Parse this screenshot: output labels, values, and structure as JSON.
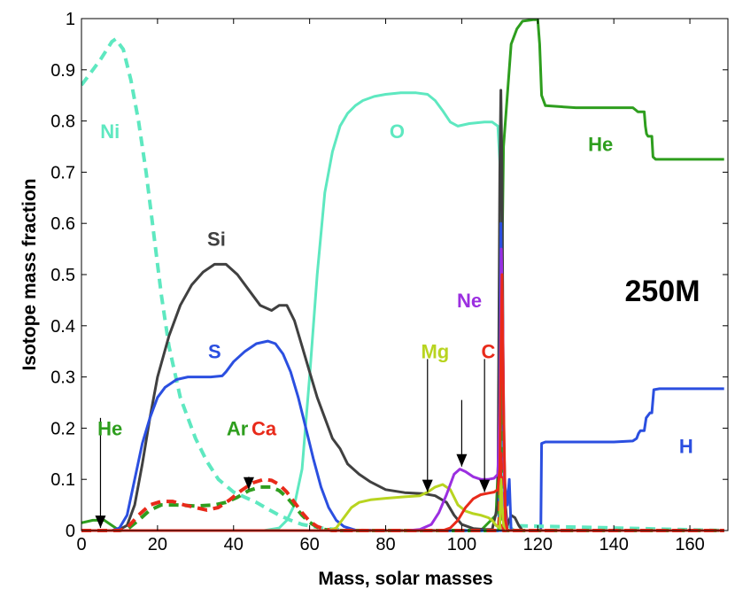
{
  "chart_data": {
    "type": "line",
    "title": "",
    "xlabel": "Mass, solar masses",
    "ylabel": "Isotope mass fraction",
    "xlim": [
      0,
      170
    ],
    "ylim": [
      0,
      1
    ],
    "xticks": [
      0,
      20,
      40,
      60,
      80,
      100,
      120,
      140,
      160
    ],
    "yticks": [
      0,
      0.1,
      0.2,
      0.3,
      0.4,
      0.5,
      0.6,
      0.7,
      0.8,
      0.9,
      1
    ],
    "xtick_labels": [
      "0",
      "20",
      "40",
      "60",
      "80",
      "100",
      "120",
      "140",
      "160"
    ],
    "ytick_labels": [
      "0",
      "0.1",
      "0.2",
      "0.3",
      "0.4",
      "0.5",
      "0.6",
      "0.7",
      "0.8",
      "0.9",
      "1"
    ],
    "grid": false,
    "annotation_text": "250M",
    "series": [
      {
        "name": "He",
        "color": "#2e9e1e",
        "dash": false,
        "x": [
          0,
          3,
          6,
          8,
          10,
          105,
          109,
          110,
          111,
          113,
          114.5,
          115,
          116,
          119,
          120,
          120.5,
          121,
          122,
          130,
          145,
          146,
          146.3,
          147,
          148,
          148.3,
          148.6,
          149,
          150,
          150.3,
          151,
          169
        ],
        "y": [
          0.015,
          0.02,
          0.02,
          0.01,
          0,
          0,
          0.03,
          0.2,
          0.75,
          0.95,
          0.98,
          0.985,
          0.995,
          0.998,
          0.998,
          0.95,
          0.85,
          0.83,
          0.826,
          0.826,
          0.82,
          0.818,
          0.818,
          0.818,
          0.79,
          0.775,
          0.77,
          0.77,
          0.73,
          0.725,
          0.725
        ]
      },
      {
        "name": "H",
        "color": "#2b4fe0",
        "dash": false,
        "x": [
          0,
          120,
          120.8,
          121,
          122,
          140,
          145,
          146,
          146.5,
          147,
          148,
          148.5,
          149.5,
          150,
          150.5,
          152,
          169
        ],
        "y": [
          0,
          0,
          0,
          0.17,
          0.173,
          0.173,
          0.175,
          0.18,
          0.19,
          0.195,
          0.195,
          0.22,
          0.23,
          0.23,
          0.275,
          0.277,
          0.277
        ]
      },
      {
        "name": "Ni",
        "color": "#5ee8c0",
        "dash": true,
        "x": [
          0,
          2,
          5,
          8,
          9,
          11,
          13,
          15,
          17,
          19,
          21,
          23,
          26,
          30,
          33,
          36,
          40,
          43,
          46,
          49,
          52,
          55,
          58,
          61,
          64,
          67,
          70,
          75,
          100,
          110,
          111,
          169
        ],
        "y": [
          0.87,
          0.89,
          0.92,
          0.955,
          0.96,
          0.94,
          0.88,
          0.8,
          0.7,
          0.58,
          0.46,
          0.36,
          0.26,
          0.18,
          0.135,
          0.1,
          0.075,
          0.065,
          0.055,
          0.042,
          0.03,
          0.02,
          0.012,
          0.008,
          0.004,
          0.002,
          0.001,
          0,
          0,
          0,
          0.01,
          0
        ]
      },
      {
        "name": "O",
        "color": "#5ee8c0",
        "dash": false,
        "x": [
          0,
          48,
          52,
          54,
          56,
          58,
          60,
          62,
          64,
          66,
          68,
          70,
          72,
          74,
          77,
          80,
          84,
          88,
          91,
          93,
          95,
          97,
          99,
          102,
          106,
          108,
          109.5,
          110,
          110.5,
          111,
          112,
          114,
          169
        ],
        "y": [
          0,
          0,
          0.005,
          0.02,
          0.05,
          0.12,
          0.3,
          0.5,
          0.66,
          0.74,
          0.79,
          0.815,
          0.83,
          0.84,
          0.848,
          0.852,
          0.855,
          0.855,
          0.852,
          0.84,
          0.82,
          0.798,
          0.79,
          0.795,
          0.798,
          0.798,
          0.79,
          0.72,
          0.3,
          0.05,
          0.01,
          0,
          0
        ]
      },
      {
        "name": "Si",
        "color": "#404040",
        "dash": false,
        "x": [
          0,
          8,
          10,
          12,
          14,
          16,
          18,
          20,
          23,
          26,
          29,
          32,
          35,
          38,
          41,
          44,
          47,
          50,
          52,
          54,
          56,
          58,
          60,
          62,
          64,
          65,
          66,
          68,
          70,
          73,
          76,
          80,
          85,
          90,
          93,
          96,
          98,
          100,
          103,
          106,
          108,
          109.5,
          110,
          110.3,
          110.6,
          111,
          111.5,
          112,
          113,
          114,
          115,
          116,
          169
        ],
        "y": [
          0,
          0,
          0.002,
          0.01,
          0.05,
          0.13,
          0.22,
          0.3,
          0.38,
          0.44,
          0.48,
          0.505,
          0.52,
          0.52,
          0.5,
          0.47,
          0.44,
          0.43,
          0.44,
          0.44,
          0.41,
          0.36,
          0.31,
          0.26,
          0.22,
          0.2,
          0.18,
          0.16,
          0.13,
          0.11,
          0.095,
          0.08,
          0.074,
          0.072,
          0.068,
          0.055,
          0.03,
          0.012,
          0.004,
          0.002,
          0.002,
          0.05,
          0.7,
          0.86,
          0.7,
          0.2,
          0.05,
          0.01,
          0.03,
          0.025,
          0.01,
          0,
          0
        ]
      },
      {
        "name": "S",
        "color": "#2b4fe0",
        "dash": false,
        "x": [
          0,
          8,
          10,
          12,
          14,
          16,
          18,
          20,
          22,
          25,
          28,
          31,
          34,
          37,
          38,
          40,
          43,
          46,
          49,
          51,
          53,
          55,
          57,
          59,
          61,
          63,
          65,
          67,
          69,
          72,
          80,
          109.8,
          110.3,
          110.7,
          111.2,
          112,
          112.5,
          113,
          169
        ],
        "y": [
          0,
          0,
          0.005,
          0.03,
          0.1,
          0.17,
          0.22,
          0.26,
          0.28,
          0.295,
          0.3,
          0.3,
          0.3,
          0.302,
          0.31,
          0.33,
          0.35,
          0.365,
          0.37,
          0.365,
          0.345,
          0.31,
          0.26,
          0.2,
          0.14,
          0.085,
          0.045,
          0.02,
          0.008,
          0.001,
          0,
          0,
          0.6,
          0.3,
          0.1,
          0.05,
          0.1,
          0,
          0
        ]
      },
      {
        "name": "Ar",
        "color": "#2e9e1e",
        "dash": true,
        "x": [
          0,
          10,
          12,
          15,
          18,
          21,
          25,
          30,
          35,
          38,
          41,
          44,
          47,
          50,
          52,
          54,
          56,
          58,
          60,
          62,
          64,
          66,
          70,
          109.8,
          110.3,
          110.7,
          111,
          169
        ],
        "y": [
          0,
          0,
          0.002,
          0.02,
          0.04,
          0.05,
          0.05,
          0.048,
          0.05,
          0.055,
          0.065,
          0.078,
          0.085,
          0.085,
          0.078,
          0.065,
          0.048,
          0.03,
          0.016,
          0.007,
          0.002,
          0,
          0,
          0,
          0.3,
          0.05,
          0,
          0
        ]
      },
      {
        "name": "Ca",
        "color": "#e82a1a",
        "dash": true,
        "x": [
          0,
          10,
          12,
          15,
          18,
          21,
          24,
          27,
          30,
          33,
          36,
          39,
          42,
          45,
          48,
          50,
          52,
          54,
          56,
          58,
          60,
          62,
          64,
          66,
          70,
          109.8,
          110.3,
          110.7,
          111,
          169
        ],
        "y": [
          0,
          0,
          0.005,
          0.03,
          0.05,
          0.057,
          0.057,
          0.05,
          0.045,
          0.04,
          0.045,
          0.06,
          0.078,
          0.093,
          0.1,
          0.098,
          0.09,
          0.075,
          0.055,
          0.035,
          0.018,
          0.008,
          0.003,
          0,
          0,
          0,
          0.15,
          0.02,
          0,
          0
        ]
      },
      {
        "name": "Mg",
        "color": "#b8d420",
        "dash": false,
        "x": [
          0,
          65,
          67,
          69,
          71,
          73,
          76,
          80,
          85,
          89,
          91,
          93,
          95,
          97,
          99,
          101,
          103,
          105,
          107,
          108,
          109,
          110,
          110.3,
          111,
          112,
          169
        ],
        "y": [
          0,
          0,
          0.005,
          0.025,
          0.045,
          0.055,
          0.06,
          0.063,
          0.066,
          0.068,
          0.075,
          0.085,
          0.09,
          0.08,
          0.05,
          0.038,
          0.033,
          0.03,
          0.025,
          0.02,
          0.01,
          0.005,
          0.1,
          0.01,
          0,
          0
        ]
      },
      {
        "name": "Ne",
        "color": "#9b2fe0",
        "dash": false,
        "x": [
          0,
          86,
          89,
          92,
          94,
          96,
          98,
          99.5,
          101,
          103,
          105,
          107,
          108.5,
          109.5,
          110,
          110.4,
          110.8,
          111.3,
          112,
          169
        ],
        "y": [
          0,
          0,
          0.002,
          0.012,
          0.035,
          0.07,
          0.11,
          0.12,
          0.115,
          0.105,
          0.1,
          0.1,
          0.102,
          0.11,
          0.25,
          0.55,
          0.4,
          0.05,
          0,
          0
        ]
      },
      {
        "name": "C",
        "color": "#e82a1a",
        "dash": false,
        "x": [
          0,
          95,
          97,
          99,
          101,
          103,
          105,
          107,
          108.5,
          109.5,
          110,
          110.3,
          110.6,
          111,
          111.5,
          112,
          169
        ],
        "y": [
          0,
          0,
          0.005,
          0.02,
          0.045,
          0.062,
          0.07,
          0.073,
          0.075,
          0.08,
          0.12,
          0.35,
          0.5,
          0.25,
          0.02,
          0,
          0
        ]
      }
    ],
    "labels": [
      {
        "text": "Ni",
        "x": 7.5,
        "y": 0.78,
        "color": "#5ee8c0"
      },
      {
        "text": "O",
        "x": 83,
        "y": 0.78,
        "color": "#5ee8c0"
      },
      {
        "text": "He",
        "x": 136.5,
        "y": 0.755,
        "color": "#2e9e1e"
      },
      {
        "text": "Si",
        "x": 35.5,
        "y": 0.57,
        "color": "#404040"
      },
      {
        "text": "S",
        "x": 35,
        "y": 0.35,
        "color": "#2b4fe0"
      },
      {
        "text": "Ne",
        "x": 102,
        "y": 0.45,
        "color": "#9b2fe0"
      },
      {
        "text": "Mg",
        "x": 93,
        "y": 0.35,
        "color": "#b8d420"
      },
      {
        "text": "C",
        "x": 107,
        "y": 0.35,
        "color": "#e82a1a"
      },
      {
        "text": "He",
        "x": 7.5,
        "y": 0.2,
        "color": "#2e9e1e"
      },
      {
        "text": "Ar",
        "x": 41,
        "y": 0.2,
        "color": "#2e9e1e"
      },
      {
        "text": "Ca",
        "x": 48,
        "y": 0.2,
        "color": "#e82a1a"
      },
      {
        "text": "H",
        "x": 159,
        "y": 0.165,
        "color": "#2b4fe0"
      }
    ],
    "arrows": [
      {
        "from": [
          5,
          0.22
        ],
        "to": [
          5,
          0.005
        ]
      },
      {
        "from": [
          44,
          0.105
        ],
        "to": [
          44,
          0.08
        ]
      },
      {
        "from": [
          91,
          0.335
        ],
        "to": [
          91,
          0.075
        ]
      },
      {
        "from": [
          100,
          0.255
        ],
        "to": [
          100,
          0.125
        ]
      },
      {
        "from": [
          106,
          0.335
        ],
        "to": [
          106,
          0.075
        ]
      }
    ]
  }
}
